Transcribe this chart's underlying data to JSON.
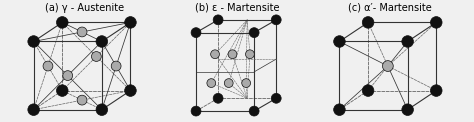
{
  "titles": [
    "(a) γ - Austenite",
    "(b) ε - Martensite",
    "(c) α′- Martensite"
  ],
  "bg_color": "#f0f0f0",
  "atom_black": "#111111",
  "atom_grey": "#aaaaaa",
  "edge_color": "#333333",
  "dashed_color": "#666666",
  "title_fontsize": 7.0
}
